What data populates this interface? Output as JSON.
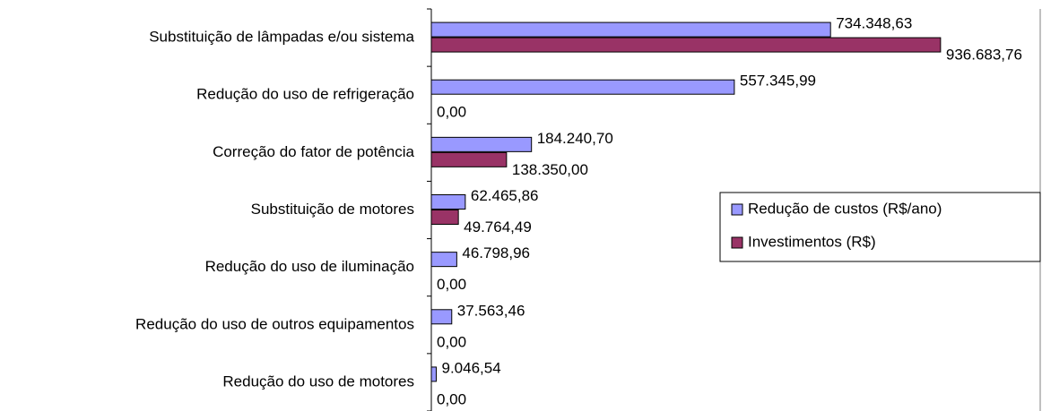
{
  "chart_data": {
    "type": "hbar",
    "categories": [
      "Substituição de lâmpadas e/ou sistema",
      "Redução do uso de refrigeração",
      "Correção do fator de potência",
      "Substituição de motores",
      "Redução do uso de iluminação",
      "Redução do uso de outros equipamentos",
      "Redução do uso de motores"
    ],
    "series": [
      {
        "name": "Redução de custos (R$/ano)",
        "color": "#9999ff",
        "values": [
          734348.63,
          557345.99,
          184240.7,
          62465.86,
          46798.96,
          37563.46,
          9046.54
        ],
        "value_labels": [
          "734.348,63",
          "557.345,99",
          "184.240,70",
          "62.465,86",
          "46.798,96",
          "37.563,46",
          "9.046,54"
        ]
      },
      {
        "name": "Investimentos (R$)",
        "color": "#993366",
        "values": [
          936683.76,
          0,
          138350.0,
          49764.49,
          0,
          0,
          0
        ],
        "value_labels": [
          "936.683,76",
          "0,00",
          "138.350,00",
          "49.764,49",
          "0,00",
          "0,00",
          "0,00"
        ]
      }
    ],
    "xlim": [
      0,
      1120000
    ],
    "legend": "right"
  }
}
